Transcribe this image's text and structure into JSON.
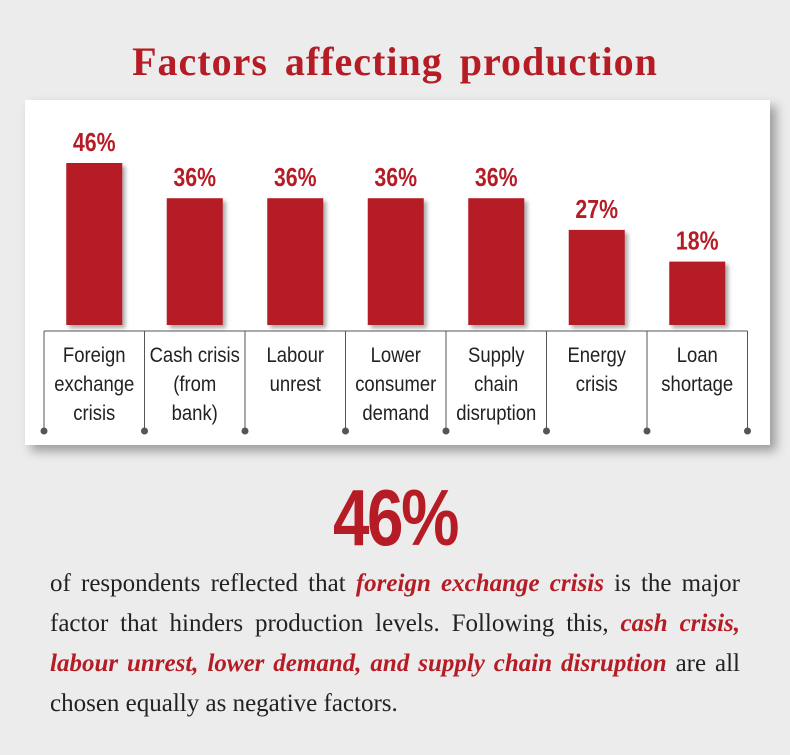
{
  "header": {
    "title": "Factors affecting production"
  },
  "chart_data": {
    "type": "bar",
    "title": "Factors affecting production",
    "categories": [
      [
        "Foreign",
        "exchange",
        "crisis"
      ],
      [
        "Cash crisis",
        "(from",
        "bank)"
      ],
      [
        "Labour",
        "unrest"
      ],
      [
        "Lower",
        "consumer",
        "demand"
      ],
      [
        "Supply",
        "chain",
        "disruption"
      ],
      [
        "Energy",
        "crisis"
      ],
      [
        "Loan",
        "shortage"
      ]
    ],
    "values": [
      46,
      36,
      36,
      36,
      36,
      27,
      18
    ],
    "data_labels": [
      "46%",
      "36%",
      "36%",
      "36%",
      "36%",
      "27%",
      "18%"
    ],
    "ylim": [
      0,
      46
    ],
    "bar_color": "#b51c25",
    "grid": false
  },
  "highlight": {
    "big_stat": "46%"
  },
  "description": {
    "part1": "of respondents reflected that ",
    "hl1": "foreign exchange crisis",
    "part2": " is the major factor that hinders production levels. Following this, ",
    "hl2": "cash crisis, labour unrest, lower demand, and supply chain disruption",
    "part3": " are all chosen equally as negative factors."
  },
  "colors": {
    "accent": "#b51c25",
    "background": "#ececec",
    "panel": "#ffffff"
  }
}
